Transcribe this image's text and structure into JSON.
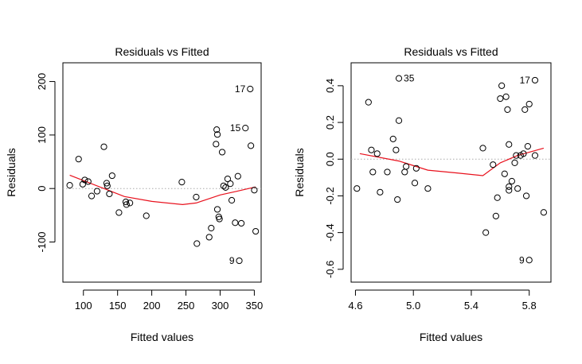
{
  "chart_data": [
    {
      "type": "scatter",
      "title": "Residuals vs Fitted",
      "xlabel": "Fitted values",
      "ylabel": "Residuals",
      "xlim": [
        70,
        360
      ],
      "ylim": [
        -175,
        235
      ],
      "xticks": [
        100,
        150,
        200,
        250,
        300,
        350
      ],
      "yticks": [
        -100,
        0,
        100,
        200
      ],
      "zero_line": true,
      "points": [
        [
          80,
          6
        ],
        [
          93,
          55
        ],
        [
          99,
          8
        ],
        [
          102,
          16
        ],
        [
          107,
          13
        ],
        [
          112,
          -14
        ],
        [
          120,
          -5
        ],
        [
          130,
          78
        ],
        [
          134,
          10
        ],
        [
          135,
          5
        ],
        [
          138,
          -10
        ],
        [
          142,
          24
        ],
        [
          152,
          -45
        ],
        [
          162,
          -25
        ],
        [
          163,
          -30
        ],
        [
          168,
          -27
        ],
        [
          192,
          -51
        ],
        [
          244,
          12
        ],
        [
          265,
          -16
        ],
        [
          266,
          -103
        ],
        [
          284,
          -91
        ],
        [
          287,
          -74
        ],
        [
          294,
          83
        ],
        [
          295,
          110
        ],
        [
          296,
          101
        ],
        [
          296,
          -39
        ],
        [
          298,
          -53
        ],
        [
          299,
          -57
        ],
        [
          303,
          68
        ],
        [
          305,
          5
        ],
        [
          308,
          2
        ],
        [
          311,
          18
        ],
        [
          315,
          9
        ],
        [
          317,
          -22
        ],
        [
          322,
          -64
        ],
        [
          326,
          23
        ],
        [
          328,
          -135
        ],
        [
          331,
          -65
        ],
        [
          337,
          113
        ],
        [
          344,
          186
        ],
        [
          345,
          80
        ],
        [
          350,
          -3
        ],
        [
          352,
          -80
        ]
      ],
      "labeled_points": [
        {
          "label": "17",
          "x": 344,
          "y": 186
        },
        {
          "label": "15",
          "x": 337,
          "y": 113
        },
        {
          "label": "9",
          "x": 328,
          "y": -135
        }
      ],
      "smooth_line": [
        [
          80,
          25
        ],
        [
          130,
          0
        ],
        [
          160,
          -15
        ],
        [
          200,
          -24
        ],
        [
          245,
          -30
        ],
        [
          265,
          -27
        ],
        [
          300,
          -12
        ],
        [
          325,
          -5
        ],
        [
          352,
          3
        ]
      ]
    },
    {
      "type": "scatter",
      "title": "Residuals vs Fitted",
      "xlabel": "Fitted values",
      "ylabel": "Residuals",
      "xlim": [
        4.57,
        5.95
      ],
      "ylim": [
        -0.67,
        0.525
      ],
      "xticks": [
        "4.6",
        "5.0",
        "5.4",
        "5.8"
      ],
      "yticks": [
        "-0.6",
        "-0.4",
        "-0.2",
        "0.0",
        "0.2",
        "0.4"
      ],
      "zero_line": true,
      "points": [
        [
          4.61,
          -0.16
        ],
        [
          4.69,
          0.31
        ],
        [
          4.71,
          0.05
        ],
        [
          4.72,
          -0.07
        ],
        [
          4.75,
          0.03
        ],
        [
          4.77,
          -0.18
        ],
        [
          4.82,
          -0.07
        ],
        [
          4.86,
          0.11
        ],
        [
          4.88,
          0.05
        ],
        [
          4.89,
          -0.22
        ],
        [
          4.9,
          0.21
        ],
        [
          4.9,
          0.44
        ],
        [
          4.94,
          -0.07
        ],
        [
          4.95,
          -0.04
        ],
        [
          5.01,
          -0.13
        ],
        [
          5.02,
          -0.05
        ],
        [
          5.1,
          -0.16
        ],
        [
          5.48,
          0.06
        ],
        [
          5.5,
          -0.4
        ],
        [
          5.55,
          -0.03
        ],
        [
          5.57,
          -0.31
        ],
        [
          5.58,
          -0.21
        ],
        [
          5.6,
          0.33
        ],
        [
          5.61,
          0.4
        ],
        [
          5.63,
          -0.08
        ],
        [
          5.64,
          0.34
        ],
        [
          5.65,
          0.27
        ],
        [
          5.66,
          0.08
        ],
        [
          5.66,
          -0.15
        ],
        [
          5.66,
          -0.17
        ],
        [
          5.68,
          -0.12
        ],
        [
          5.7,
          -0.02
        ],
        [
          5.71,
          0.02
        ],
        [
          5.72,
          -0.16
        ],
        [
          5.74,
          0.02
        ],
        [
          5.76,
          0.03
        ],
        [
          5.77,
          0.27
        ],
        [
          5.78,
          -0.2
        ],
        [
          5.79,
          0.07
        ],
        [
          5.8,
          0.3
        ],
        [
          5.8,
          -0.55
        ],
        [
          5.84,
          0.02
        ],
        [
          5.84,
          0.43
        ],
        [
          5.9,
          -0.29
        ]
      ],
      "labeled_points": [
        {
          "label": "35",
          "x": 4.9,
          "y": 0.44
        },
        {
          "label": "17",
          "x": 5.84,
          "y": 0.43
        },
        {
          "label": "9",
          "x": 5.8,
          "y": -0.55
        }
      ],
      "smooth_line": [
        [
          4.63,
          0.03
        ],
        [
          4.9,
          -0.01
        ],
        [
          5.1,
          -0.06
        ],
        [
          5.3,
          -0.075
        ],
        [
          5.48,
          -0.09
        ],
        [
          5.6,
          -0.02
        ],
        [
          5.72,
          0.02
        ],
        [
          5.9,
          0.06
        ]
      ]
    }
  ]
}
